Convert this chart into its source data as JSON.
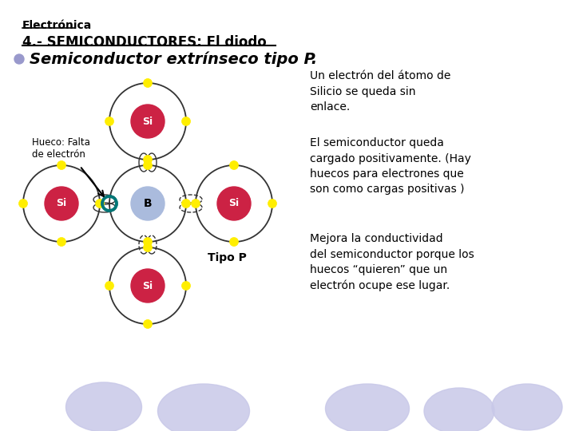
{
  "title_line1": "Electrónica",
  "title_line2": "4.- SEMICONDUCTORES: El diodo",
  "subtitle": "Semiconductor extrínseco tipo P.",
  "bullet_color": "#9999cc",
  "text1": "Un electrón del átomo de\nSilicio se queda sin\nenlace.",
  "text2": "El semiconductor queda\ncargado positivamente. (Hay\nhuecos para electrones que\nson como cargas positivas )",
  "text3": "Mejora la conductividad\ndel semiconductor porque los\nhuecos “quieren” que un\nelectrón ocupe ese lugar.",
  "label_hueco": "Hueco: Falta\nde electrón",
  "label_tipo": "Tipo P",
  "bg_color": "#ffffff",
  "oval_color": "#c8c8e8",
  "si_color": "#cc2244",
  "b_color": "#aabbdd",
  "electron_color": "#ffee00",
  "hole_color": "#007777",
  "bond_color": "#333333"
}
